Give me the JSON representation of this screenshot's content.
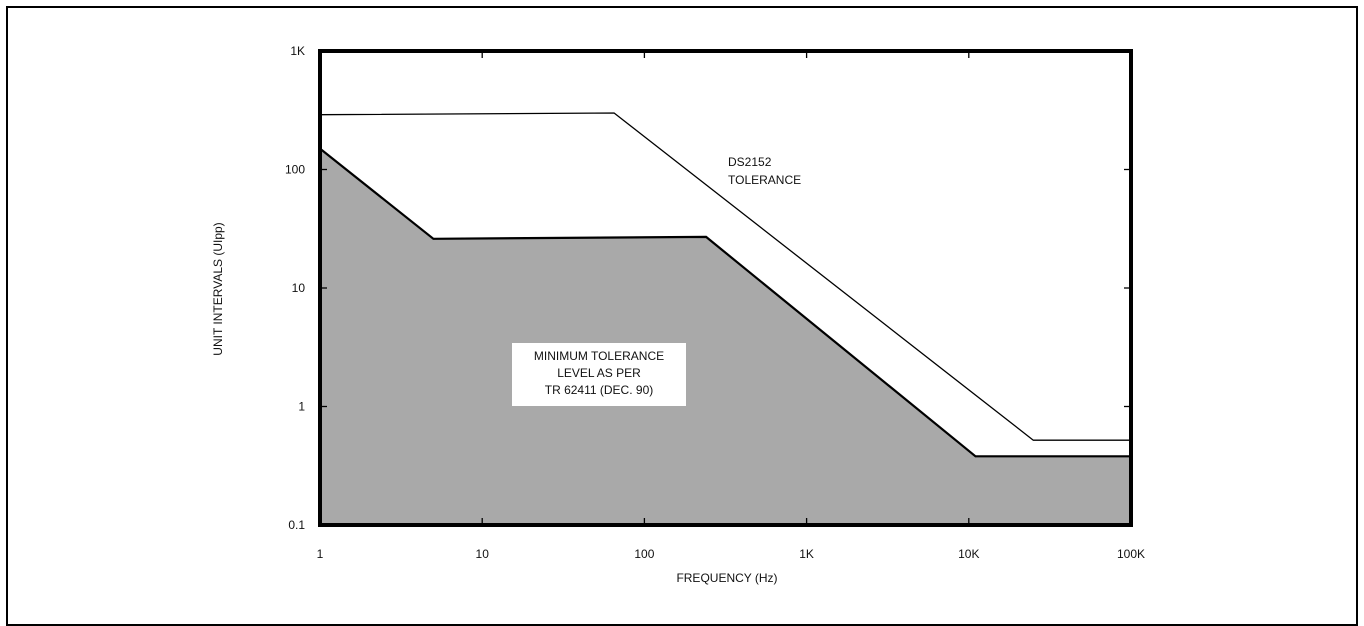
{
  "chart_data": {
    "type": "line",
    "title": "",
    "xlabel": "FREQUENCY (Hz)",
    "ylabel": "UNIT INTERVALS (UIpp)",
    "x_scale": "log",
    "y_scale": "log",
    "xlim": [
      1,
      100000
    ],
    "ylim": [
      0.1,
      1000
    ],
    "x_ticks": [
      {
        "value": 1,
        "label": "1"
      },
      {
        "value": 10,
        "label": "10"
      },
      {
        "value": 100,
        "label": "100"
      },
      {
        "value": 1000,
        "label": "1K"
      },
      {
        "value": 10000,
        "label": "10K"
      },
      {
        "value": 100000,
        "label": "100K"
      }
    ],
    "y_ticks": [
      {
        "value": 0.1,
        "label": "0.1"
      },
      {
        "value": 1,
        "label": "1"
      },
      {
        "value": 10,
        "label": "10"
      },
      {
        "value": 100,
        "label": "100"
      },
      {
        "value": 1000,
        "label": "1K"
      }
    ],
    "grid": false,
    "series": [
      {
        "name": "DS2152 TOLERANCE",
        "style": "line",
        "color": "#000000",
        "points": [
          [
            1,
            290
          ],
          [
            65,
            300
          ],
          [
            25000,
            0.52
          ],
          [
            100000,
            0.52
          ]
        ]
      },
      {
        "name": "MINIMUM TOLERANCE LEVEL AS PER TR 62411 (DEC. 90)",
        "style": "area",
        "color": "#a9a9a9",
        "points": [
          [
            1,
            150
          ],
          [
            5,
            26
          ],
          [
            240,
            27
          ],
          [
            11000,
            0.38
          ],
          [
            100000,
            0.38
          ]
        ]
      }
    ],
    "annotations": [
      {
        "lines": [
          "DS2152",
          "TOLERANCE"
        ]
      },
      {
        "lines": [
          "MINIMUM TOLERANCE",
          "LEVEL AS PER",
          "TR 62411 (DEC. 90)"
        ]
      }
    ]
  }
}
